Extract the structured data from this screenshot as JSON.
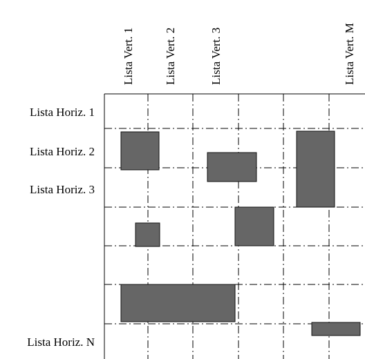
{
  "column_labels": [
    "Lista Vert. 1",
    "Lista Vert. 2",
    "Lista Vert. 3",
    "Lista Vert. M"
  ],
  "row_labels": [
    "Lista Horiz. 1",
    "Lista Horiz. 2",
    "Lista Horiz. 3",
    "Lista Horiz. N"
  ],
  "colors": {
    "block_fill": "#666666",
    "block_stroke": "#111111",
    "grid_line": "#000000",
    "background": "#ffffff"
  },
  "blocks": [
    {
      "name": "block-1"
    },
    {
      "name": "block-2"
    },
    {
      "name": "block-3"
    },
    {
      "name": "block-4"
    },
    {
      "name": "block-5"
    },
    {
      "name": "block-6"
    },
    {
      "name": "block-7"
    }
  ]
}
